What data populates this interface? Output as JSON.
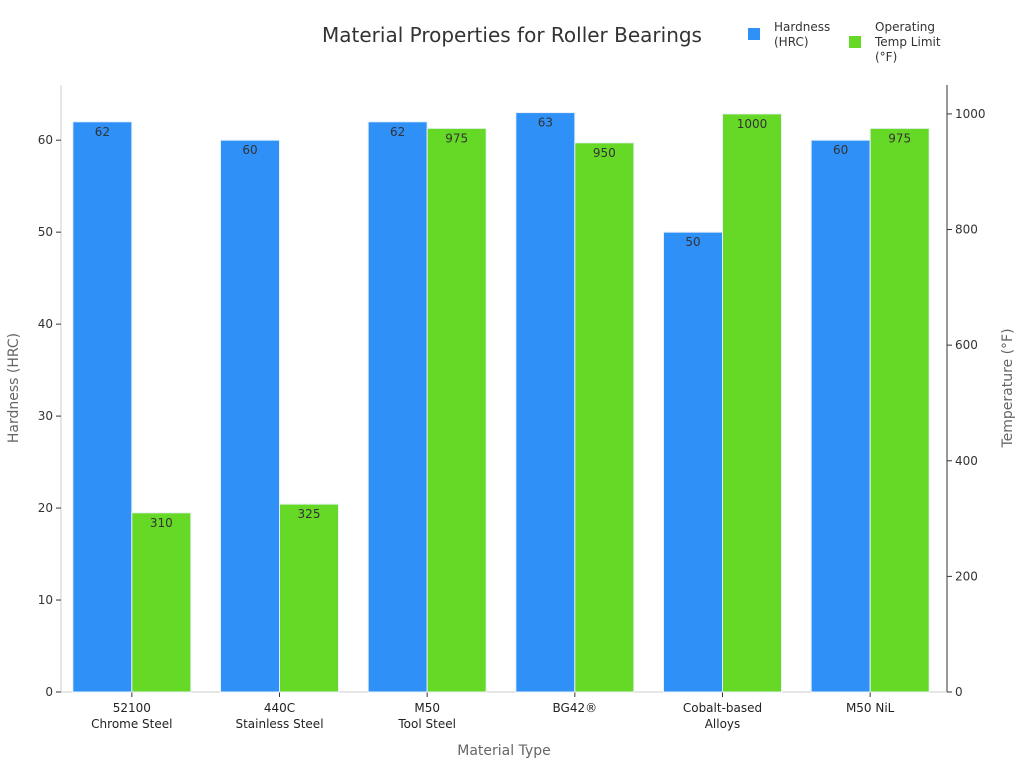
{
  "chart_data": {
    "type": "bar",
    "title": "Material Properties for Roller Bearings",
    "xlabel": "Material Type",
    "ylabel_left": "Hardness (HRC)",
    "ylabel_right": "Temperature (°F)",
    "categories": [
      [
        "52100",
        "Chrome Steel"
      ],
      [
        "440C",
        "Stainless Steel"
      ],
      [
        "M50",
        "Tool Steel"
      ],
      [
        "BG42®"
      ],
      [
        "Cobalt-based",
        "Alloys"
      ],
      [
        "M50 NiL"
      ]
    ],
    "series": [
      {
        "name": [
          "Hardness",
          "(HRC)"
        ],
        "axis": "left",
        "color": "#2f90f7",
        "values": [
          62,
          60,
          62,
          63,
          50,
          60
        ]
      },
      {
        "name": [
          "Operating",
          "Temp Limit",
          "(°F)"
        ],
        "axis": "right",
        "color": "#66d926",
        "values": [
          310,
          325,
          975,
          950,
          1000,
          975
        ]
      }
    ],
    "ylim_left": [
      0,
      66
    ],
    "yticks_left": [
      0,
      10,
      20,
      30,
      40,
      50,
      60
    ],
    "ylim_right": [
      0,
      1050
    ],
    "yticks_right": [
      0,
      200,
      400,
      600,
      800,
      1000
    ],
    "grid": false,
    "legend": "top-right"
  }
}
